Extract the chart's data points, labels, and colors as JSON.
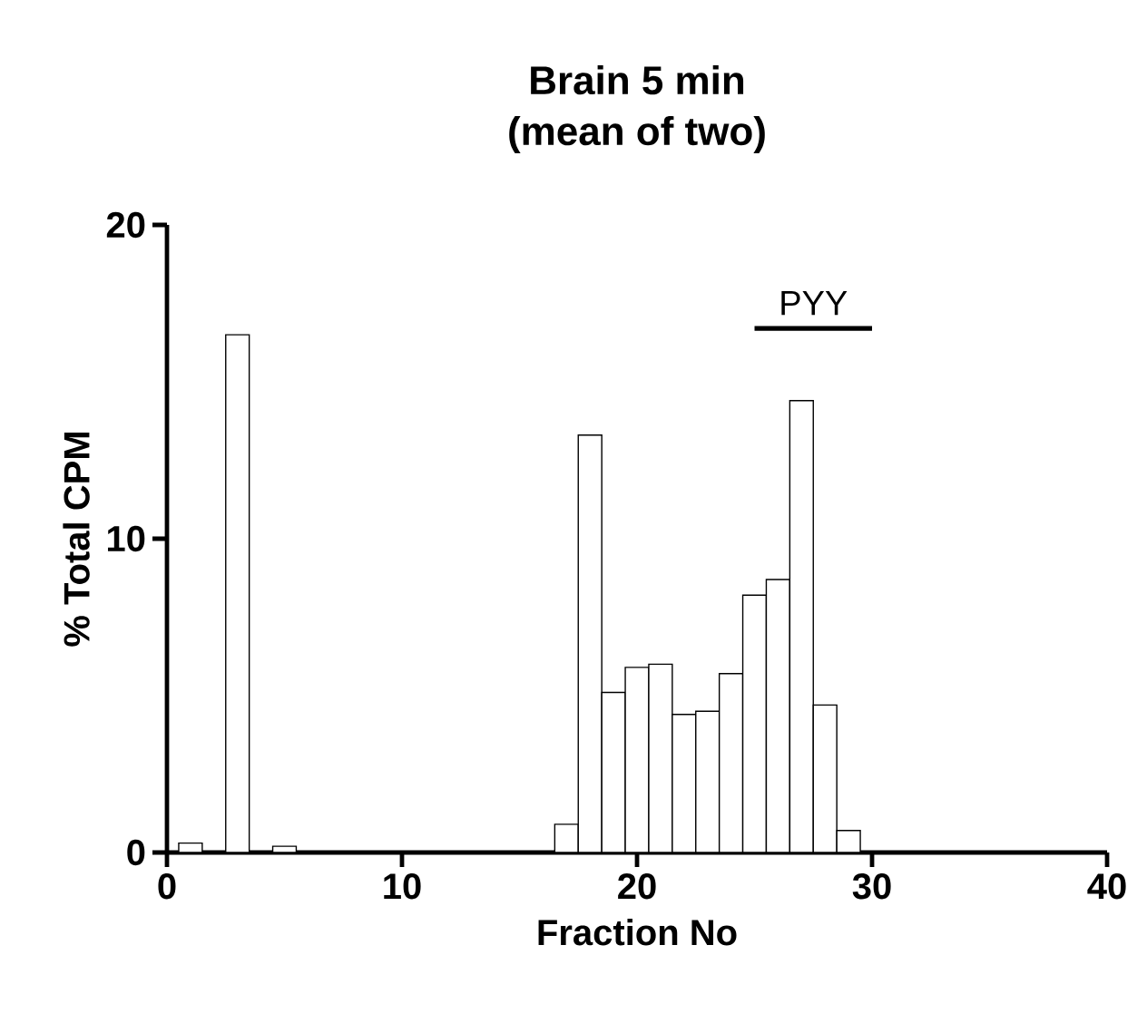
{
  "chart_data": {
    "type": "bar",
    "title": "Brain 5 min",
    "subtitle": "(mean of two)",
    "xlabel": "Fraction No",
    "ylabel": "% Total CPM",
    "xlim": [
      0,
      40
    ],
    "xticks": [
      0,
      10,
      20,
      30,
      40
    ],
    "ylim": [
      0,
      20
    ],
    "yticks": [
      0,
      10,
      20
    ],
    "series": [
      {
        "color": "#000000",
        "x": [
          1,
          3,
          5,
          17,
          18,
          19,
          20,
          21,
          22,
          23,
          24,
          25,
          26,
          27,
          28,
          29
        ],
        "values": [
          0.3,
          16.5,
          0.2,
          0.9,
          13.3,
          5.1,
          5.9,
          6.0,
          4.4,
          4.5,
          5.7,
          8.2,
          8.7,
          14.4,
          4.7,
          0.7
        ]
      },
      {
        "type": "line",
        "color": "#000000",
        "x": [
          25,
          30
        ],
        "values": [
          16.7,
          16.7
        ]
      }
    ],
    "annotations": [
      {
        "text": "PYY",
        "x": 27.5,
        "y": 16.7
      }
    ]
  }
}
